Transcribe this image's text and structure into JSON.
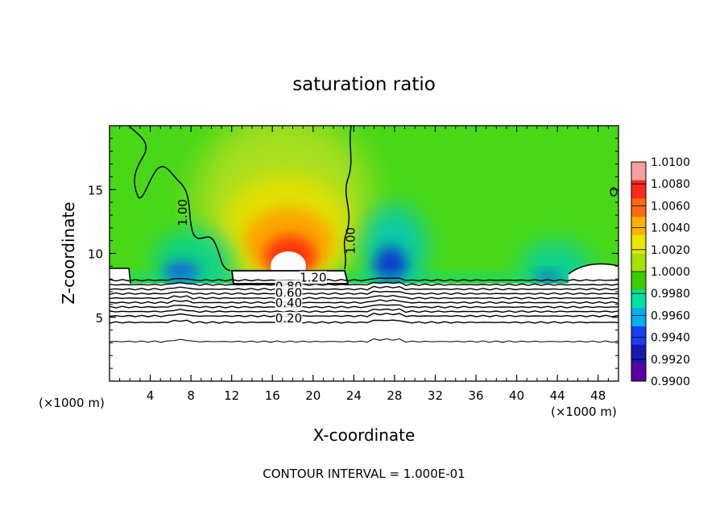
{
  "chart_data": {
    "type": "heatmap",
    "title": "saturation ratio",
    "xlabel": "X-coordinate",
    "ylabel": "Z-coordinate",
    "x_unit_left": "(×1000 m)",
    "x_unit_right": "(×1000 m)",
    "footer": "CONTOUR INTERVAL = 1.000E-01",
    "xlim": [
      0,
      50
    ],
    "ylim": [
      0,
      20
    ],
    "x_ticks": [
      4,
      8,
      12,
      16,
      20,
      24,
      28,
      32,
      36,
      40,
      44,
      48
    ],
    "y_ticks": [
      5,
      10,
      15
    ],
    "colorbar": {
      "levels": [
        "1.0100",
        "1.0080",
        "1.0060",
        "1.0040",
        "1.0020",
        "1.0000",
        "0.9980",
        "0.9960",
        "0.9940",
        "0.9920",
        "0.9900"
      ],
      "colors": [
        "#f4a0a0",
        "#ff2a1a",
        "#ff6a10",
        "#ffb000",
        "#e8e800",
        "#a8e000",
        "#3ccc00",
        "#00e0a0",
        "#00b0f0",
        "#1a3ef0",
        "#1818b0",
        "#5a00a0"
      ]
    },
    "contour_labels": [
      {
        "text": "1.00",
        "x": 7.6,
        "y": 13.2,
        "rot": -90
      },
      {
        "text": "1.00",
        "x": 24.1,
        "y": 11.0,
        "rot": -90
      },
      {
        "text": "1.20",
        "x": 20.0,
        "y": 7.8,
        "rot": 0
      },
      {
        "text": "0.80",
        "x": 17.6,
        "y": 7.1,
        "rot": 0
      },
      {
        "text": "0.60",
        "x": 17.6,
        "y": 6.6,
        "rot": 0
      },
      {
        "text": "0.40",
        "x": 17.6,
        "y": 5.8,
        "rot": 0
      },
      {
        "text": "0.20",
        "x": 17.6,
        "y": 4.6,
        "rot": 0
      }
    ],
    "contour_lines_z": [
      7.9,
      7.55,
      7.2,
      6.85,
      6.5,
      6.15,
      5.8,
      5.45,
      5.1,
      4.6,
      3.1
    ],
    "regions": [
      {
        "name": "peak-high",
        "x": 17.6,
        "z": 10.3,
        "value": 1.008
      },
      {
        "name": "dry-pocket-left",
        "x": 7.0,
        "z": 8.3,
        "value": 0.993
      },
      {
        "name": "dry-pocket-mid",
        "x": 27.0,
        "z": 9.5,
        "value": 0.992
      },
      {
        "name": "dry-pocket-right",
        "x": 42.5,
        "z": 8.0,
        "value": 0.993
      }
    ]
  }
}
